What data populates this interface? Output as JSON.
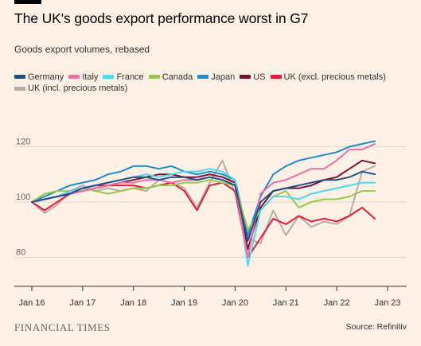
{
  "header": {
    "title": "The UK's goods export performance worst in G7",
    "subtitle": "Goods export volumes, rebased"
  },
  "footer": {
    "brand": "FINANCIAL TIMES",
    "source": "Source: Refinitiv"
  },
  "colors": {
    "background": "#fff1e5",
    "gridline": "#e0d4c8",
    "axis": "#33302e"
  },
  "chart_data": {
    "type": "line",
    "title": "The UK's goods export performance worst in G7",
    "subtitle": "Goods export volumes, rebased",
    "xlabel": "",
    "ylabel": "",
    "x_ticks": [
      "Jan 16",
      "Jan 17",
      "Jan 18",
      "Jan 19",
      "Jan 20",
      "Jan 21",
      "Jan 22",
      "Jan 23"
    ],
    "y_ticks": [
      80,
      100,
      120
    ],
    "ylim": [
      71,
      127
    ],
    "xlim": [
      2016,
      2023
    ],
    "grid": true,
    "legend_placement": "top",
    "x": [
      2016.0,
      2016.25,
      2016.5,
      2016.75,
      2017.0,
      2017.25,
      2017.5,
      2017.75,
      2018.0,
      2018.25,
      2018.5,
      2018.75,
      2019.0,
      2019.25,
      2019.5,
      2019.75,
      2020.0,
      2020.25,
      2020.5,
      2020.75,
      2021.0,
      2021.25,
      2021.5,
      2021.75,
      2022.0,
      2022.25,
      2022.5,
      2022.75
    ],
    "series": [
      {
        "name": "Germany",
        "color": "#1f4e8c",
        "values": [
          100,
          101,
          102,
          103,
          105,
          106,
          107,
          108,
          109,
          109,
          108,
          109,
          109,
          108,
          109,
          108,
          106,
          86,
          100,
          104,
          105,
          106,
          107,
          108,
          108,
          109,
          111,
          110
        ]
      },
      {
        "name": "Italy",
        "color": "#f06ea8",
        "values": [
          100,
          101,
          102,
          103,
          104,
          105,
          106,
          107,
          107,
          108,
          108,
          107,
          108,
          108,
          109,
          108,
          106,
          80,
          103,
          107,
          108,
          110,
          112,
          112,
          115,
          119,
          119,
          121
        ]
      },
      {
        "name": "France",
        "color": "#4fd7f0",
        "values": [
          100,
          101,
          102,
          104,
          105,
          106,
          107,
          108,
          109,
          110,
          109,
          110,
          111,
          111,
          112,
          111,
          108,
          77,
          97,
          102,
          102,
          101,
          103,
          104,
          105,
          106,
          107,
          107
        ]
      },
      {
        "name": "Canada",
        "color": "#96c84c",
        "values": [
          100,
          103,
          104,
          104,
          105,
          104,
          103,
          104,
          105,
          105,
          106,
          106,
          107,
          107,
          108,
          107,
          106,
          90,
          97,
          102,
          104,
          98,
          100,
          101,
          101,
          102,
          104,
          104
        ]
      },
      {
        "name": "Japan",
        "color": "#1c8ad0",
        "values": [
          100,
          102,
          104,
          106,
          107,
          108,
          110,
          111,
          113,
          113,
          112,
          113,
          111,
          110,
          111,
          110,
          108,
          88,
          102,
          110,
          113,
          115,
          116,
          117,
          118,
          120,
          121,
          122
        ]
      },
      {
        "name": "US",
        "color": "#7a0f2e",
        "values": [
          100,
          101,
          102,
          103,
          104,
          105,
          106,
          107,
          108,
          109,
          110,
          110,
          109,
          109,
          110,
          109,
          107,
          83,
          98,
          104,
          105,
          105,
          106,
          108,
          109,
          112,
          115,
          114
        ]
      },
      {
        "name": "UK (excl. precious metals)",
        "color": "#e0203a",
        "values": [
          100,
          97,
          100,
          103,
          105,
          106,
          106,
          106,
          106,
          105,
          106,
          107,
          104,
          97,
          106,
          107,
          104,
          80,
          87,
          94,
          92,
          95,
          93,
          94,
          93,
          95,
          98,
          94
        ]
      },
      {
        "name": "UK (incl. precious metals)",
        "color": "#b5aca5",
        "values": [
          100,
          96,
          99,
          104,
          106,
          104,
          105,
          104,
          105,
          104,
          108,
          107,
          105,
          98,
          107,
          115,
          103,
          87,
          85,
          97,
          88,
          95,
          91,
          93,
          92,
          95,
          111,
          113
        ]
      }
    ]
  }
}
